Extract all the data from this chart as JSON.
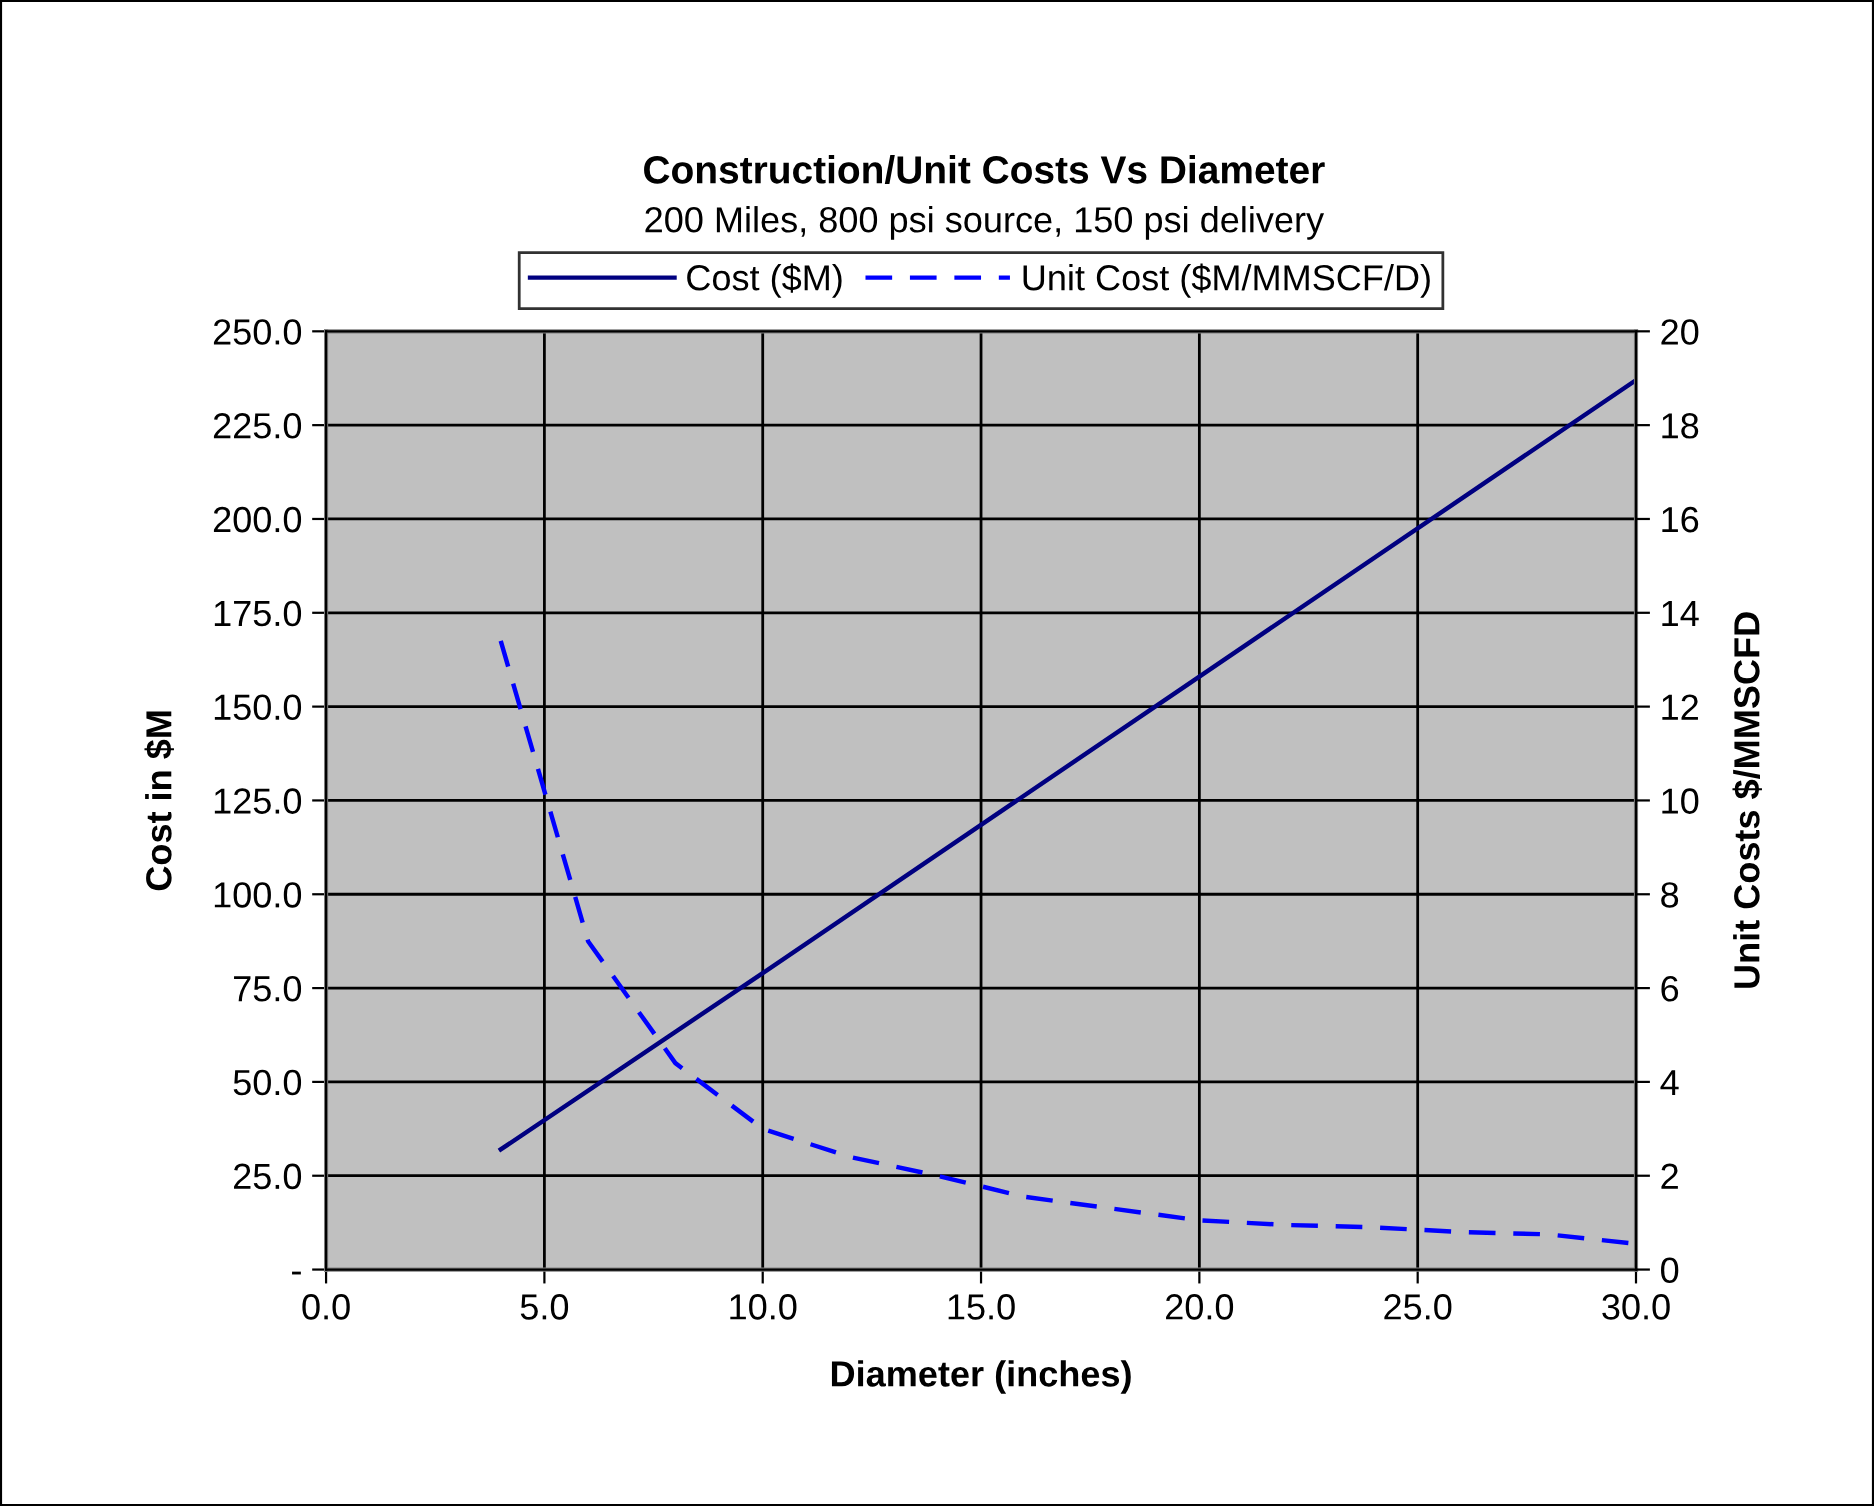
{
  "chart_data": {
    "type": "line",
    "title": "Construction/Unit Costs Vs Diameter",
    "subtitle": "200 Miles, 800 psi source, 150 psi delivery",
    "xlabel": "Diameter (inches)",
    "ylabel": "Cost in $M",
    "y2label": "Unit Costs $/MMSCFD",
    "series": [
      {
        "name": "Cost ($M)",
        "color": "#000080",
        "line_style": "solid",
        "x": [
          4,
          10,
          20,
          30
        ],
        "values": [
          32,
          79,
          158,
          237
        ]
      },
      {
        "name": "Unit Cost ($M/MMSCF/D)",
        "color": "#0000ff",
        "line_style": "dashed",
        "axis": "y2",
        "x": [
          4,
          6,
          8,
          10,
          12,
          14,
          16,
          18,
          20,
          22,
          24,
          26,
          28,
          30
        ],
        "values": [
          13.4,
          7.0,
          4.4,
          3.0,
          2.4,
          2.0,
          1.55,
          1.3,
          1.05,
          0.95,
          0.9,
          0.8,
          0.75,
          0.55
        ]
      }
    ],
    "xlim": [
      0,
      30
    ],
    "xticks": [
      {
        "value": 0,
        "label": "0.0"
      },
      {
        "value": 5,
        "label": "5.0"
      },
      {
        "value": 10,
        "label": "10.0"
      },
      {
        "value": 15,
        "label": "15.0"
      },
      {
        "value": 20,
        "label": "20.0"
      },
      {
        "value": 25,
        "label": "25.0"
      },
      {
        "value": 30,
        "label": "30.0"
      }
    ],
    "ylim": [
      0,
      250
    ],
    "yticks": [
      {
        "value": 0,
        "label": "-"
      },
      {
        "value": 25,
        "label": "25.0"
      },
      {
        "value": 50,
        "label": "50.0"
      },
      {
        "value": 75,
        "label": "75.0"
      },
      {
        "value": 100,
        "label": "100.0"
      },
      {
        "value": 125,
        "label": "125.0"
      },
      {
        "value": 150,
        "label": "150.0"
      },
      {
        "value": 175,
        "label": "175.0"
      },
      {
        "value": 200,
        "label": "200.0"
      },
      {
        "value": 225,
        "label": "225.0"
      },
      {
        "value": 250,
        "label": "250.0"
      }
    ],
    "y2lim": [
      0,
      20
    ],
    "y2ticks": [
      0,
      2,
      4,
      6,
      8,
      10,
      12,
      14,
      16,
      18,
      20
    ],
    "grid": true,
    "legend": "top",
    "marker": "none"
  }
}
